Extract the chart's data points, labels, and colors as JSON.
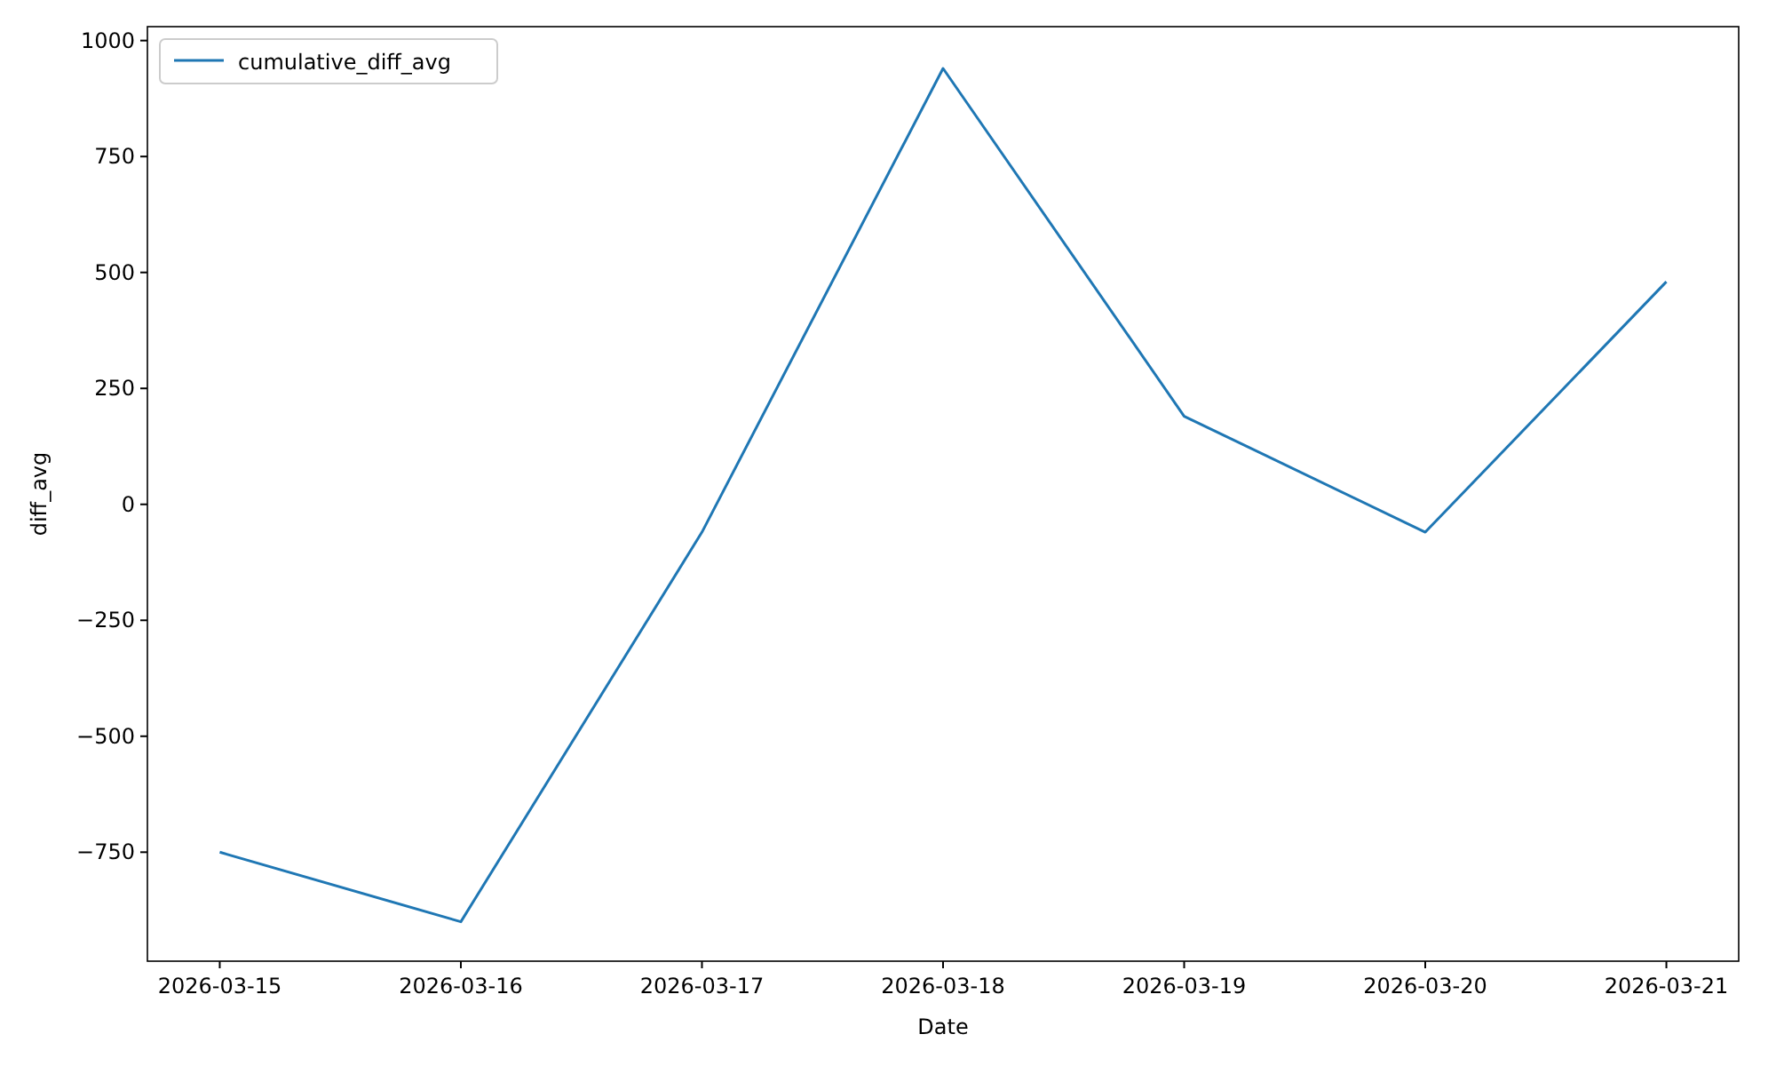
{
  "chart_data": {
    "type": "line",
    "xlabel": "Date",
    "ylabel": "diff_avg",
    "x": [
      "2026-03-15",
      "2026-03-16",
      "2026-03-17",
      "2026-03-18",
      "2026-03-19",
      "2026-03-20",
      "2026-03-21"
    ],
    "series": [
      {
        "name": "cumulative_diff_avg",
        "color": "#1f77b4",
        "values": [
          -750,
          -900,
          -60,
          940,
          190,
          -60,
          480
        ]
      }
    ],
    "xlim": [
      "2026-03-14T16:48",
      "2026-03-21T07:12"
    ],
    "xticks": [
      {
        "value": "2026-03-15",
        "label": "2026-03-15"
      },
      {
        "value": "2026-03-16",
        "label": "2026-03-16"
      },
      {
        "value": "2026-03-17",
        "label": "2026-03-17"
      },
      {
        "value": "2026-03-18",
        "label": "2026-03-18"
      },
      {
        "value": "2026-03-19",
        "label": "2026-03-19"
      },
      {
        "value": "2026-03-20",
        "label": "2026-03-20"
      },
      {
        "value": "2026-03-21",
        "label": "2026-03-21"
      }
    ],
    "ylim": [
      -985,
      1030
    ],
    "yticks": [
      {
        "value": -750,
        "label": "−750"
      },
      {
        "value": -500,
        "label": "−500"
      },
      {
        "value": -250,
        "label": "−250"
      },
      0,
      250,
      500,
      750,
      1000
    ],
    "legend": "top left",
    "grid": false,
    "line_style": "solid",
    "marker": "none"
  }
}
